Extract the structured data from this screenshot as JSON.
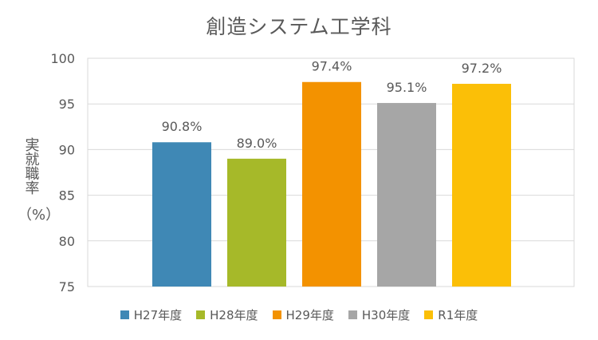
{
  "chart_data": {
    "type": "bar",
    "title": "創造システム工学科",
    "ylabel": "実就職率",
    "ylabel_unit": "（%）",
    "categories": [
      "H27年度",
      "H28年度",
      "H29年度",
      "H30年度",
      "R1年度"
    ],
    "values": [
      90.8,
      89.0,
      97.4,
      95.1,
      97.2
    ],
    "data_labels": [
      "90.8%",
      "89.0%",
      "97.4%",
      "95.1%",
      "97.2%"
    ],
    "colors": [
      "#3f88b5",
      "#a6b929",
      "#f39200",
      "#a6a6a6",
      "#fbbf07"
    ],
    "ylim": [
      75,
      100
    ],
    "yticks": [
      75,
      80,
      85,
      90,
      95,
      100
    ],
    "grid": true,
    "legend": "bottom"
  }
}
